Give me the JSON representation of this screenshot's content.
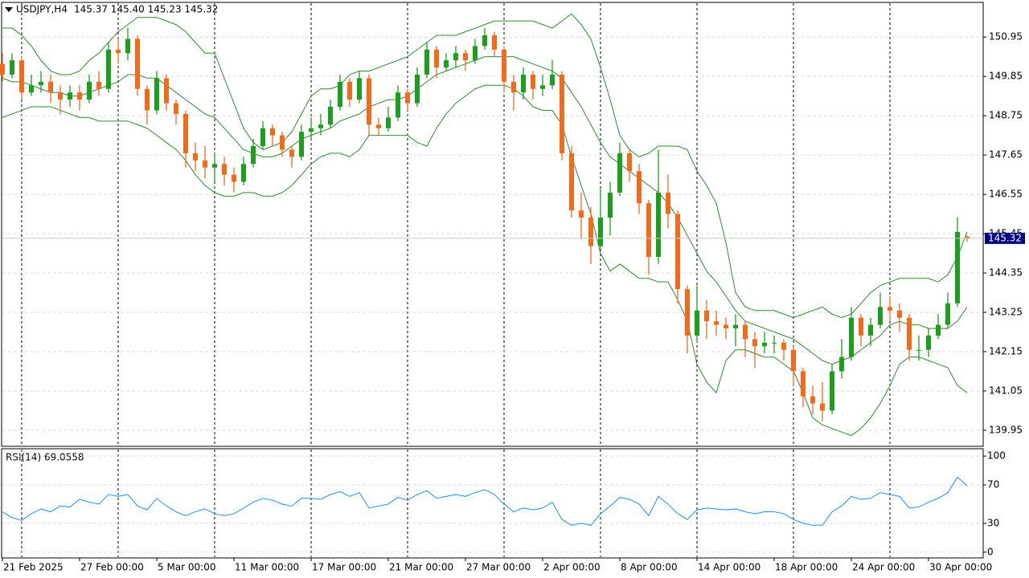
{
  "chart_data": [
    {
      "type": "candlestick",
      "title": "USDJPY,H4",
      "quote": "145.37 145.40 145.23 145.32",
      "up_color": "#1e9e1e",
      "down_color": "#f26b1d",
      "band_color": "#2e8b2e",
      "grid": true,
      "ylim": [
        139.5,
        151.92
      ],
      "yticks": [
        150.95,
        149.85,
        148.75,
        147.65,
        146.55,
        145.45,
        144.35,
        143.25,
        142.15,
        141.05,
        139.95
      ],
      "current_price": 145.32,
      "xticks": [
        {
          "value": 0,
          "label": "21 Feb 2025"
        },
        {
          "value": 8,
          "label": "27 Feb 00:00"
        },
        {
          "value": 16,
          "label": "5 Mar 00:00"
        },
        {
          "value": 24,
          "label": "11 Mar 00:00"
        },
        {
          "value": 32,
          "label": "17 Mar 00:00"
        },
        {
          "value": 40,
          "label": "21 Mar 00:00"
        },
        {
          "value": 48,
          "label": "27 Mar 00:00"
        },
        {
          "value": 56,
          "label": "2 Apr 00:00"
        },
        {
          "value": 64,
          "label": "8 Apr 00:00"
        },
        {
          "value": 72,
          "label": "14 Apr 00:00"
        },
        {
          "value": 80,
          "label": "18 Apr 00:00"
        },
        {
          "value": 88,
          "label": "24 Apr 00:00"
        },
        {
          "value": 96,
          "label": "30 Apr 00:00"
        }
      ],
      "xgrid": [
        2,
        12,
        22,
        32,
        42,
        52,
        62,
        72,
        82,
        92
      ],
      "open": [
        150.2,
        149.9,
        150.3,
        149.4,
        149.6,
        149.7,
        149.4,
        149.2,
        149.4,
        149.2,
        149.7,
        149.5,
        150.6,
        150.5,
        150.9,
        149.5,
        148.9,
        149.8,
        149.1,
        148.8,
        147.7,
        147.5,
        147.3,
        147.4,
        147.1,
        146.9,
        147.4,
        147.9,
        148.4,
        148.2,
        147.8,
        147.6,
        148.3,
        148.4,
        148.5,
        149.0,
        149.7,
        149.2,
        149.8,
        148.5,
        148.4,
        148.7,
        149.4,
        149.1,
        149.9,
        150.6,
        150.1,
        150.3,
        150.5,
        150.3,
        150.7,
        151.0,
        150.6,
        149.7,
        149.4,
        149.9,
        149.5,
        149.6,
        149.9,
        147.7,
        146.1,
        145.9,
        145.1,
        145.9,
        146.6,
        147.7,
        147.2,
        146.3,
        144.8,
        146.6,
        146.0,
        143.9,
        142.6,
        143.3,
        143.0,
        142.9,
        142.8,
        142.9,
        142.5,
        142.3,
        142.4,
        142.4,
        142.2,
        141.6,
        140.9,
        140.7,
        140.5,
        141.6,
        142.0,
        143.1,
        142.6,
        142.9,
        143.4,
        143.3,
        143.1,
        142.2,
        142.2,
        142.6,
        142.9,
        143.5,
        145.37
      ],
      "high": [
        150.5,
        150.5,
        150.4,
        149.9,
        150.0,
        149.9,
        149.6,
        149.6,
        149.6,
        149.9,
        150.0,
        150.8,
        150.9,
        151.2,
        151.0,
        149.6,
        150.0,
        149.9,
        149.2,
        148.9,
        148.0,
        147.9,
        147.7,
        147.6,
        147.3,
        147.6,
        148.1,
        148.6,
        148.5,
        148.3,
        147.9,
        148.5,
        148.7,
        148.8,
        149.2,
        149.9,
        149.8,
        150.0,
        149.9,
        148.7,
        149.0,
        149.6,
        149.5,
        150.1,
        150.8,
        150.7,
        150.5,
        150.7,
        150.6,
        150.9,
        151.2,
        151.1,
        150.7,
        149.9,
        150.1,
        150.0,
        149.9,
        150.3,
        150.0,
        147.9,
        146.6,
        146.2,
        146.7,
        146.9,
        148.0,
        147.8,
        147.4,
        146.4,
        147.8,
        147.1,
        146.1,
        144.0,
        144.0,
        143.6,
        143.3,
        143.1,
        143.2,
        143.0,
        142.7,
        142.7,
        142.6,
        142.5,
        142.3,
        141.7,
        141.2,
        141.3,
        141.8,
        142.5,
        143.4,
        143.2,
        143.1,
        143.8,
        143.7,
        143.5,
        143.2,
        142.6,
        142.8,
        143.2,
        143.8,
        145.9,
        145.4
      ],
      "low": [
        149.7,
        149.8,
        149.2,
        149.3,
        149.4,
        149.1,
        148.8,
        149.0,
        148.9,
        149.1,
        149.3,
        149.4,
        150.2,
        150.3,
        149.3,
        148.5,
        148.8,
        148.9,
        148.5,
        147.3,
        147.2,
        147.0,
        146.9,
        146.8,
        146.6,
        146.8,
        147.3,
        147.8,
        147.9,
        147.6,
        147.3,
        147.5,
        148.1,
        148.2,
        148.4,
        148.9,
        149.0,
        149.1,
        148.2,
        148.2,
        148.3,
        148.6,
        148.9,
        149.0,
        149.8,
        149.8,
        150.0,
        150.1,
        150.0,
        150.2,
        150.6,
        150.4,
        149.4,
        148.9,
        149.2,
        149.2,
        149.3,
        149.5,
        147.5,
        145.9,
        145.3,
        144.6,
        145.0,
        145.4,
        146.5,
        146.9,
        146.0,
        144.3,
        144.6,
        145.6,
        143.5,
        142.1,
        142.4,
        142.5,
        142.6,
        142.5,
        142.3,
        142.0,
        141.7,
        142.1,
        142.1,
        141.9,
        141.2,
        140.6,
        140.4,
        140.2,
        140.4,
        141.4,
        141.9,
        142.3,
        142.3,
        142.8,
        143.0,
        142.7,
        141.9,
        141.9,
        142.0,
        142.5,
        142.8,
        143.4,
        145.23
      ],
      "close": [
        149.9,
        150.3,
        149.4,
        149.6,
        149.7,
        149.4,
        149.2,
        149.4,
        149.2,
        149.7,
        149.5,
        150.6,
        150.5,
        150.9,
        149.5,
        148.9,
        149.8,
        149.1,
        148.8,
        147.7,
        147.5,
        147.3,
        147.4,
        147.1,
        146.9,
        147.4,
        147.9,
        148.4,
        148.2,
        147.8,
        147.6,
        148.3,
        148.4,
        148.5,
        149.0,
        149.7,
        149.2,
        149.8,
        148.5,
        148.4,
        148.7,
        149.4,
        149.1,
        149.9,
        150.6,
        150.1,
        150.3,
        150.5,
        150.3,
        150.7,
        151.0,
        150.6,
        149.7,
        149.4,
        149.9,
        149.5,
        149.6,
        149.9,
        147.7,
        146.1,
        145.9,
        145.1,
        145.9,
        146.6,
        147.7,
        147.2,
        146.3,
        144.8,
        146.6,
        146.0,
        143.9,
        142.6,
        143.3,
        143.0,
        142.9,
        142.8,
        142.9,
        142.5,
        142.3,
        142.4,
        142.4,
        142.2,
        141.6,
        140.9,
        140.7,
        140.5,
        141.6,
        142.0,
        143.1,
        142.6,
        142.9,
        143.4,
        143.3,
        143.1,
        142.2,
        142.2,
        142.6,
        142.9,
        143.5,
        145.5,
        145.32
      ],
      "band_upper": [
        151.2,
        151.2,
        151.0,
        150.7,
        150.3,
        150.0,
        149.9,
        149.9,
        150.0,
        150.3,
        150.5,
        150.8,
        151.1,
        151.3,
        151.5,
        151.5,
        151.5,
        151.4,
        151.3,
        151.1,
        150.8,
        150.5,
        150.5,
        149.8,
        149.1,
        148.4,
        148.0,
        147.8,
        147.9,
        148.0,
        148.3,
        148.8,
        149.3,
        149.5,
        149.5,
        149.6,
        149.9,
        150.0,
        150.0,
        150.1,
        150.2,
        150.3,
        150.4,
        150.6,
        150.8,
        151.0,
        151.0,
        151.0,
        151.1,
        151.2,
        151.3,
        151.4,
        151.4,
        151.4,
        151.4,
        151.4,
        151.3,
        151.2,
        151.4,
        151.6,
        151.3,
        150.9,
        150.1,
        149.2,
        148.2,
        147.8,
        147.6,
        147.7,
        147.9,
        147.9,
        147.9,
        147.8,
        147.2,
        146.8,
        146.3,
        145.2,
        143.8,
        143.4,
        143.3,
        143.3,
        143.3,
        143.2,
        143.1,
        143.2,
        143.3,
        143.4,
        143.2,
        143.1,
        143.2,
        143.5,
        143.8,
        144.0,
        144.1,
        144.2,
        144.2,
        144.2,
        144.2,
        144.1,
        144.3,
        144.8,
        145.5
      ],
      "band_middle": [
        149.8,
        149.7,
        149.7,
        149.6,
        149.5,
        149.4,
        149.4,
        149.3,
        149.3,
        149.4,
        149.5,
        149.6,
        149.7,
        149.9,
        149.9,
        149.8,
        149.8,
        149.6,
        149.4,
        149.2,
        149.0,
        148.8,
        148.7,
        148.4,
        148.1,
        147.8,
        147.7,
        147.6,
        147.6,
        147.7,
        147.9,
        148.1,
        148.2,
        148.3,
        148.4,
        148.6,
        148.7,
        148.8,
        149.0,
        149.1,
        149.2,
        149.2,
        149.3,
        149.5,
        149.7,
        149.9,
        150.0,
        150.1,
        150.2,
        150.3,
        150.4,
        150.4,
        150.4,
        150.4,
        150.3,
        150.2,
        150.1,
        150.0,
        149.8,
        149.4,
        149.0,
        148.5,
        148.0,
        147.6,
        147.4,
        147.2,
        147.0,
        146.8,
        146.6,
        146.3,
        145.9,
        145.4,
        144.9,
        144.4,
        144.1,
        143.7,
        143.3,
        143.0,
        142.9,
        142.8,
        142.7,
        142.6,
        142.5,
        142.3,
        142.1,
        141.9,
        141.8,
        141.9,
        142.0,
        142.2,
        142.4,
        142.6,
        142.9,
        143.0,
        142.9,
        142.9,
        142.8,
        142.8,
        142.8,
        143.0,
        143.4
      ],
      "band_lower": [
        148.7,
        148.8,
        148.9,
        149.0,
        149.0,
        149.0,
        148.9,
        148.8,
        148.7,
        148.7,
        148.6,
        148.6,
        148.6,
        148.6,
        148.5,
        148.4,
        148.2,
        148.0,
        147.8,
        147.5,
        147.1,
        146.8,
        146.6,
        146.5,
        146.5,
        146.6,
        146.6,
        146.5,
        146.5,
        146.6,
        146.8,
        147.1,
        147.4,
        147.6,
        147.7,
        147.7,
        147.6,
        147.8,
        148.2,
        148.2,
        148.2,
        148.2,
        148.2,
        148.0,
        147.9,
        148.4,
        148.8,
        149.1,
        149.3,
        149.5,
        149.6,
        149.6,
        149.6,
        149.5,
        149.3,
        149.0,
        148.9,
        148.9,
        148.5,
        147.6,
        146.8,
        146.0,
        144.9,
        144.4,
        144.6,
        144.4,
        144.2,
        144.2,
        144.1,
        144.1,
        143.6,
        143.0,
        141.8,
        141.3,
        141.0,
        141.9,
        142.2,
        142.2,
        142.1,
        142.0,
        142.0,
        141.8,
        141.6,
        141.0,
        140.3,
        140.1,
        140.0,
        139.9,
        139.8,
        140.0,
        140.3,
        140.7,
        141.2,
        141.8,
        142.0,
        142.0,
        141.9,
        141.8,
        141.7,
        141.2,
        141.0
      ]
    },
    {
      "type": "line",
      "title": "RSI(14) 69.0558",
      "color": "#1e90ff",
      "ylim": [
        -6,
        107.6
      ],
      "yticks": [
        100,
        70,
        30,
        0
      ],
      "grid": true,
      "values": [
        42,
        36,
        33,
        40,
        45,
        42,
        48,
        47,
        55,
        52,
        50,
        60,
        58,
        60,
        48,
        44,
        56,
        48,
        42,
        38,
        42,
        45,
        40,
        38,
        40,
        46,
        52,
        56,
        54,
        50,
        48,
        56,
        56,
        55,
        60,
        63,
        58,
        62,
        46,
        48,
        50,
        57,
        54,
        60,
        64,
        56,
        58,
        60,
        58,
        62,
        65,
        60,
        50,
        42,
        46,
        44,
        46,
        52,
        34,
        28,
        30,
        28,
        40,
        48,
        57,
        55,
        50,
        38,
        58,
        50,
        40,
        34,
        44,
        46,
        45,
        44,
        45,
        42,
        40,
        42,
        42,
        40,
        34,
        30,
        28,
        28,
        42,
        48,
        58,
        55,
        56,
        62,
        60,
        58,
        46,
        47,
        52,
        56,
        62,
        78,
        69.0558
      ]
    }
  ]
}
